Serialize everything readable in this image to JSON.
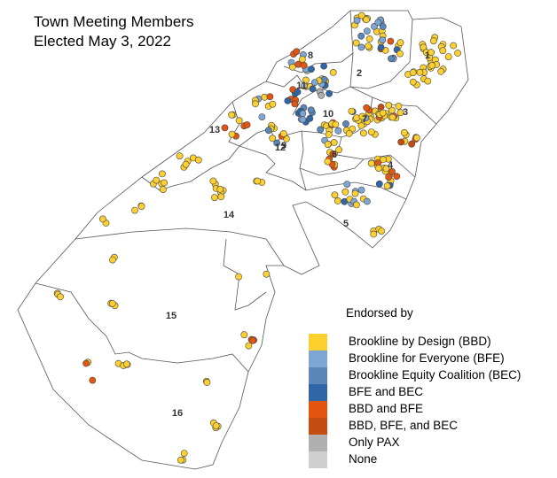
{
  "title": {
    "line1": "Town Meeting Members",
    "line2": "Elected May 3, 2022"
  },
  "legend": {
    "title": "Endorsed by",
    "items": [
      {
        "label": "Brookline by Design (BBD)",
        "color": "#fcd02f"
      },
      {
        "label": "Brookline for Everyone (BFE)",
        "color": "#7ea6d4"
      },
      {
        "label": "Brookline Equity Coalition (BEC)",
        "color": "#5a86ba"
      },
      {
        "label": "BFE and BEC",
        "color": "#2e66a8"
      },
      {
        "label": "BBD and BFE",
        "color": "#e4560f"
      },
      {
        "label": "BBD, BFE, and BEC",
        "color": "#c34d12"
      },
      {
        "label": "Only PAX",
        "color": "#b0b0b0"
      },
      {
        "label": "None",
        "color": "#cfcfcf"
      }
    ]
  },
  "precincts": [
    "1",
    "2",
    "3",
    "4",
    "5",
    "6",
    "7",
    "8",
    "9",
    "10",
    "11",
    "12",
    "13",
    "14",
    "15",
    "16"
  ]
}
